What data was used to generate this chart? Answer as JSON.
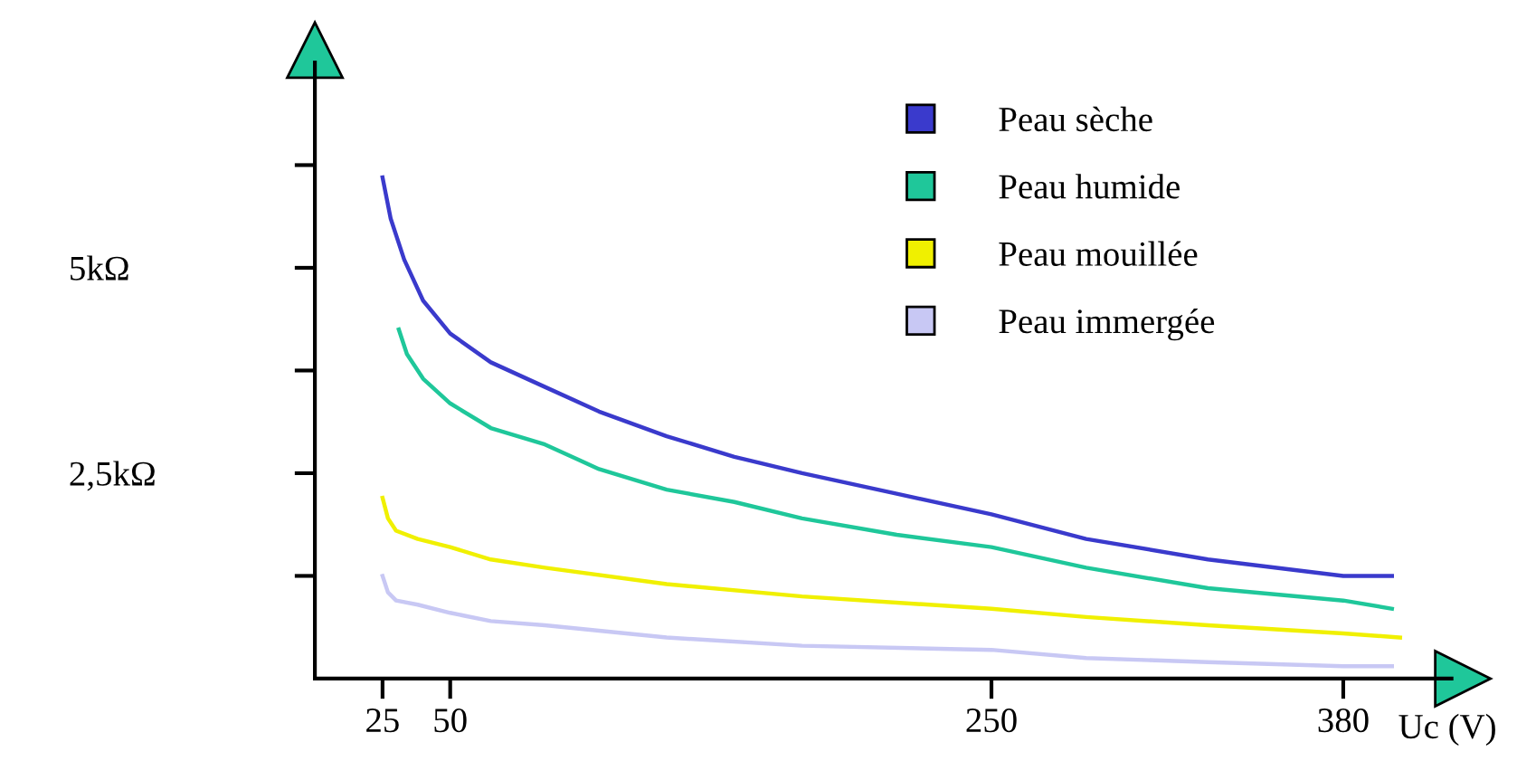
{
  "chart_data": {
    "type": "line",
    "xlabel": "Uc (V)",
    "xlim": [
      0,
      420
    ],
    "xticks": [
      25,
      50,
      250,
      380
    ],
    "ylim": [
      0,
      7500
    ],
    "yticks": [
      {
        "value": 1250,
        "label": null
      },
      {
        "value": 2500,
        "label": "2,5kΩ"
      },
      {
        "value": 3750,
        "label": null
      },
      {
        "value": 5000,
        "label": "5kΩ"
      },
      {
        "value": 6250,
        "label": null
      }
    ],
    "grid": false,
    "legend": "top right",
    "marker": "none",
    "line_style": "solid",
    "series": [
      {
        "name": "Peau sèche",
        "color": "#3a3acc",
        "x": [
          25,
          28,
          33,
          40,
          50,
          65,
          85,
          105,
          130,
          155,
          180,
          215,
          250,
          285,
          330,
          380,
          398
        ],
        "values": [
          6100,
          5600,
          5100,
          4600,
          4200,
          3850,
          3550,
          3250,
          2950,
          2700,
          2500,
          2250,
          2000,
          1700,
          1450,
          1250,
          1250
        ]
      },
      {
        "name": "Peau humide",
        "color": "#1fc79a",
        "x": [
          31,
          34,
          40,
          50,
          65,
          85,
          105,
          130,
          155,
          180,
          215,
          250,
          285,
          330,
          380,
          398
        ],
        "values": [
          4250,
          3950,
          3650,
          3350,
          3050,
          2850,
          2550,
          2300,
          2150,
          1950,
          1750,
          1600,
          1350,
          1100,
          950,
          850
        ]
      },
      {
        "name": "Peau mouillée",
        "color": "#f0f000",
        "x": [
          25,
          27,
          30,
          38,
          50,
          65,
          85,
          130,
          180,
          250,
          285,
          330,
          380,
          401
        ],
        "values": [
          2200,
          1950,
          1800,
          1700,
          1600,
          1450,
          1350,
          1150,
          1000,
          850,
          750,
          650,
          550,
          500
        ]
      },
      {
        "name": "Peau immergée",
        "color": "#c8c8f4",
        "x": [
          25,
          27,
          30,
          38,
          50,
          65,
          85,
          130,
          180,
          250,
          285,
          330,
          380,
          398
        ],
        "values": [
          1250,
          1050,
          950,
          900,
          800,
          700,
          650,
          500,
          400,
          350,
          250,
          200,
          150,
          150
        ]
      }
    ]
  }
}
